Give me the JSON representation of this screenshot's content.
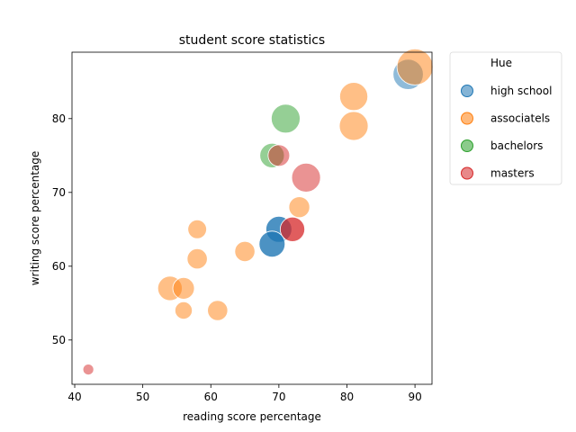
{
  "chart_data": {
    "type": "scatter",
    "title": "student score statistics",
    "xlabel": "reading score percentage",
    "ylabel": "writing score percentage",
    "xlim": [
      39.6,
      92.5
    ],
    "ylim": [
      44.0,
      89.0
    ],
    "xticks": [
      40,
      50,
      60,
      70,
      80,
      90
    ],
    "yticks": [
      50,
      60,
      70,
      80
    ],
    "grid": false,
    "legend": {
      "title": "Hue",
      "placement": "outside-right-top",
      "entries": [
        "high school",
        "associatels",
        "bachelors",
        "masters"
      ]
    },
    "series": [
      {
        "name": "high school",
        "color": "#1f77b4",
        "points": [
          {
            "x": 89,
            "y": 86,
            "size": 4.2,
            "alpha": 0.5
          },
          {
            "x": 70,
            "y": 65,
            "size": 3.6,
            "alpha": 0.8
          },
          {
            "x": 69,
            "y": 63,
            "size": 3.6,
            "alpha": 0.8
          }
        ]
      },
      {
        "name": "associatels",
        "color": "#ff7f0e",
        "points": [
          {
            "x": 90,
            "y": 87,
            "size": 5.0,
            "alpha": 0.5
          },
          {
            "x": 81,
            "y": 83,
            "size": 3.9,
            "alpha": 0.5
          },
          {
            "x": 81,
            "y": 79,
            "size": 4.0,
            "alpha": 0.5
          },
          {
            "x": 73,
            "y": 68,
            "size": 2.9,
            "alpha": 0.5
          },
          {
            "x": 65,
            "y": 62,
            "size": 2.8,
            "alpha": 0.5
          },
          {
            "x": 58,
            "y": 65,
            "size": 2.6,
            "alpha": 0.5
          },
          {
            "x": 58,
            "y": 61,
            "size": 2.8,
            "alpha": 0.5
          },
          {
            "x": 54,
            "y": 57,
            "size": 3.4,
            "alpha": 0.5
          },
          {
            "x": 56,
            "y": 57,
            "size": 3.0,
            "alpha": 0.5
          },
          {
            "x": 56,
            "y": 54,
            "size": 2.4,
            "alpha": 0.5
          },
          {
            "x": 61,
            "y": 54,
            "size": 2.8,
            "alpha": 0.5
          }
        ]
      },
      {
        "name": "bachelors",
        "color": "#2ca02c",
        "points": [
          {
            "x": 71,
            "y": 80,
            "size": 4.0,
            "alpha": 0.5
          },
          {
            "x": 69,
            "y": 75,
            "size": 3.4,
            "alpha": 0.5
          }
        ]
      },
      {
        "name": "masters",
        "color": "#d62728",
        "points": [
          {
            "x": 74,
            "y": 72,
            "size": 4.0,
            "alpha": 0.5
          },
          {
            "x": 70,
            "y": 75,
            "size": 3.0,
            "alpha": 0.5
          },
          {
            "x": 72,
            "y": 65,
            "size": 3.4,
            "alpha": 0.75
          },
          {
            "x": 42,
            "y": 46,
            "size": 1.5,
            "alpha": 0.5
          }
        ]
      }
    ]
  }
}
